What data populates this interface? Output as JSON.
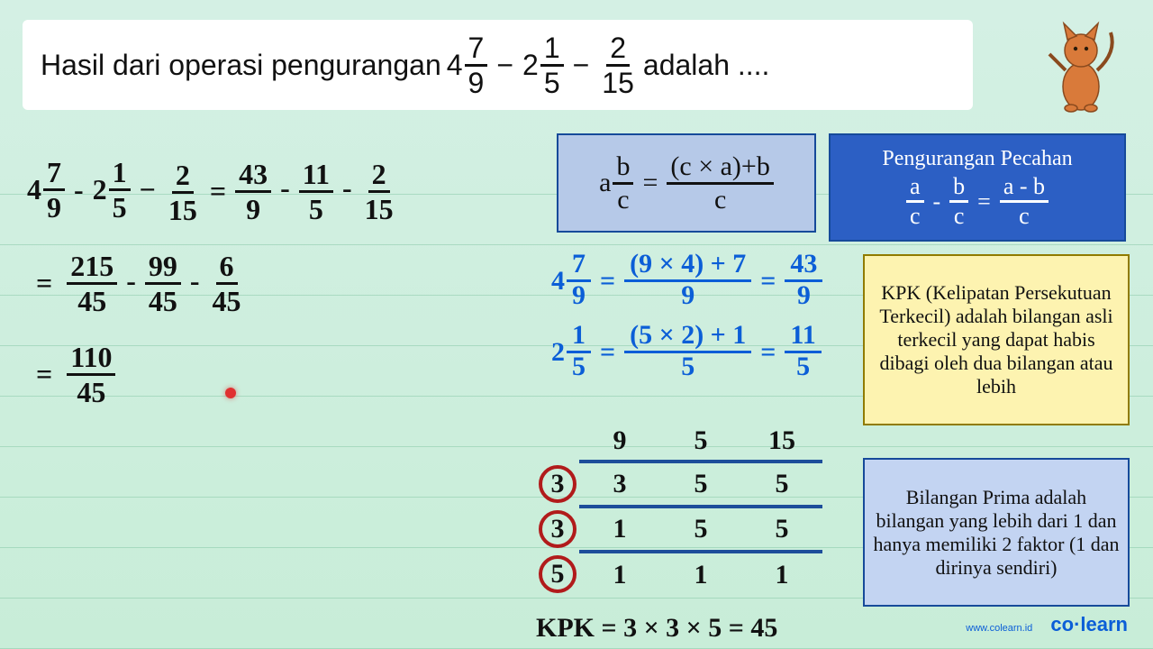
{
  "colors": {
    "bg_top": "#d4f0e4",
    "bg_bottom": "#c8edd8",
    "line": "#9ed4b5",
    "question_bg": "#ffffff",
    "ink": "#111111",
    "blue_ink": "#0b5ed7",
    "box1_bg": "#b6c9e8",
    "box1_border": "#164a9a",
    "box2_bg": "#2c5fc4",
    "box2_text": "#ffffff",
    "kpk_bg": "#fdf3b0",
    "kpk_border": "#907b00",
    "prime_bg": "#c3d4f2",
    "ladder_line": "#1d4e9a",
    "circle": "#b11b1b",
    "red_dot": "#e03030"
  },
  "fonts": {
    "handwriting": "Comic Sans MS",
    "question": "Segoe UI",
    "title_pt": 32,
    "body_pt": 30,
    "box_pt": 22
  },
  "question": {
    "prefix": "Hasil dari operasi pengurangan ",
    "expr": [
      {
        "type": "mixed",
        "whole": "4",
        "num": "7",
        "den": "9"
      },
      {
        "type": "op",
        "text": "−"
      },
      {
        "type": "mixed",
        "whole": "2",
        "num": "1",
        "den": "5"
      },
      {
        "type": "op",
        "text": "−"
      },
      {
        "type": "frac",
        "num": "2",
        "den": "15"
      }
    ],
    "suffix": " adalah ...."
  },
  "working": {
    "line1_left": [
      {
        "type": "mixed",
        "whole": "4",
        "num": "7",
        "den": "9"
      },
      {
        "type": "op",
        "text": "-"
      },
      {
        "type": "mixed",
        "whole": "2",
        "num": "1",
        "den": "5"
      },
      {
        "type": "op",
        "text": "−"
      },
      {
        "type": "frac",
        "num": "2",
        "den": "15"
      }
    ],
    "line1_right": [
      {
        "type": "frac",
        "num": "43",
        "den": "9"
      },
      {
        "type": "op",
        "text": "-"
      },
      {
        "type": "frac",
        "num": "11",
        "den": "5"
      },
      {
        "type": "op",
        "text": "-"
      },
      {
        "type": "frac",
        "num": "2",
        "den": "15"
      }
    ],
    "line2": [
      {
        "type": "frac",
        "num": "215",
        "den": "45"
      },
      {
        "type": "op",
        "text": "-"
      },
      {
        "type": "frac",
        "num": "99",
        "den": "45"
      },
      {
        "type": "op",
        "text": "-"
      },
      {
        "type": "frac",
        "num": "6",
        "den": "45"
      }
    ],
    "line3": [
      {
        "type": "frac",
        "num": "110",
        "den": "45"
      }
    ],
    "eq": "="
  },
  "formula1": {
    "lhs_a": "a",
    "lhs_num": "b",
    "lhs_den": "c",
    "rhs_num": "(c × a)+b",
    "rhs_den": "c",
    "eq": "="
  },
  "formula2": {
    "title": "Pengurangan Pecahan",
    "t1_num": "a",
    "t1_den": "c",
    "op": "-",
    "t2_num": "b",
    "t2_den": "c",
    "eq": "=",
    "r_num": "a - b",
    "r_den": "c"
  },
  "convert": {
    "row1": {
      "whole": "4",
      "num": "7",
      "den": "9",
      "mid_num": "(9 × 4) + 7",
      "mid_den": "9",
      "r_num": "43",
      "r_den": "9"
    },
    "row2": {
      "whole": "2",
      "num": "1",
      "den": "5",
      "mid_num": "(5 × 2) + 1",
      "mid_den": "5",
      "r_num": "11",
      "r_den": "5"
    },
    "eq": "="
  },
  "kpk_text": "KPK (Kelipatan Persekutuan Terkecil) adalah bilangan asli terkecil yang dapat habis dibagi oleh dua bilangan atau lebih",
  "prime_text": "Bilangan Prima adalah bilangan yang lebih dari 1 dan hanya memiliki 2 faktor (1 dan dirinya sendiri)",
  "ladder": {
    "primes": [
      "3",
      "3",
      "5"
    ],
    "rows": [
      [
        "9",
        "5",
        "15"
      ],
      [
        "3",
        "5",
        "5"
      ],
      [
        "1",
        "5",
        "5"
      ],
      [
        "1",
        "1",
        "1"
      ]
    ]
  },
  "kpk_result": "KPK = 3 × 3 × 5 = 45",
  "brand": {
    "url": "www.colearn.id",
    "logo": "co·learn"
  }
}
